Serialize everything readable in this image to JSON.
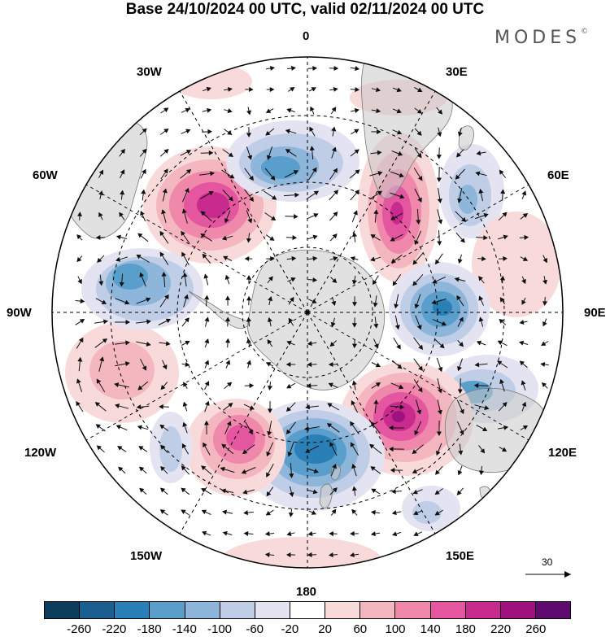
{
  "title": "Base 24/10/2024 00 UTC, valid 02/11/2024 00 UTC",
  "brand": {
    "name": "MODES",
    "mark": "©"
  },
  "longitude_labels": {
    "lon_0": "0",
    "lon_30e": "30E",
    "lon_60e": "60E",
    "lon_90e": "90E",
    "lon_120e": "120E",
    "lon_150e": "150E",
    "lon_180": "180",
    "lon_150w": "150W",
    "lon_120w": "120W",
    "lon_90w": "90W",
    "lon_60w": "60W",
    "lon_30w": "30W"
  },
  "reference_vector": {
    "label": "30"
  },
  "colorbar": {
    "colors": [
      "#0d3b5c",
      "#1a5f8f",
      "#2a7fb6",
      "#5a9ecb",
      "#8db6da",
      "#bfcde6",
      "#e3e3f2",
      "#ffffff",
      "#f9dadb",
      "#f4b7c0",
      "#ef88ab",
      "#e457a0",
      "#c82a8e",
      "#9e117f",
      "#5e0a6e"
    ],
    "ticks": [
      "-260",
      "-220",
      "-180",
      "-140",
      "-100",
      "-60",
      "-20",
      "20",
      "60",
      "100",
      "140",
      "180",
      "220",
      "260"
    ]
  }
}
